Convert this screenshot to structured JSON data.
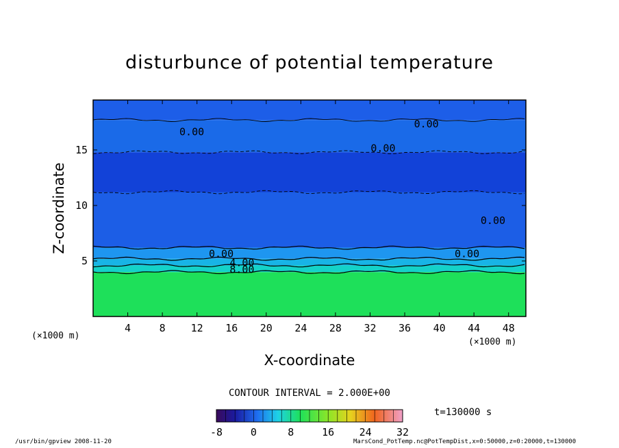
{
  "chart_data": {
    "type": "heatmap",
    "title": "disturbunce of potential temperature",
    "xlabel": "X-coordinate",
    "ylabel": "Z-coordinate",
    "x_unit_label": "(×1000 m)",
    "xlim": [
      0,
      50
    ],
    "ylim": [
      0,
      19.5
    ],
    "x_ticks": [
      4,
      8,
      12,
      16,
      20,
      24,
      28,
      32,
      36,
      40,
      44,
      48
    ],
    "y_ticks": [
      5,
      10,
      15
    ],
    "contour_interval_text": "CONTOUR INTERVAL = 2.000E+00",
    "time_text": "t=130000 s",
    "colorbar": {
      "min": -8,
      "max": 32,
      "ticks": [
        "-8",
        "0",
        "8",
        "16",
        "24",
        "32"
      ]
    },
    "layers": [
      {
        "z_from": 0,
        "z_to": 4,
        "value": 14,
        "color": "#1ee05a"
      },
      {
        "z_from": 4,
        "z_to": 4.6,
        "value": 10,
        "color": "#14d2c8"
      },
      {
        "z_from": 4.6,
        "z_to": 5.2,
        "value": 6,
        "color": "#18b4e6"
      },
      {
        "z_from": 5.2,
        "z_to": 6.2,
        "value": 2,
        "color": "#1e96f0"
      },
      {
        "z_from": 6.2,
        "z_to": 11.2,
        "value": -1.5,
        "color": "#1c5ee6"
      },
      {
        "z_from": 11.2,
        "z_to": 14.8,
        "value": -2.5,
        "color": "#1242d8"
      },
      {
        "z_from": 14.8,
        "z_to": 17.7,
        "value": -1,
        "color": "#1a6ae8"
      },
      {
        "z_from": 17.7,
        "z_to": 19.5,
        "value": -1.5,
        "color": "#1d5ee8"
      }
    ],
    "contour_labels": [
      {
        "text": "0.00",
        "x": 11.4,
        "z": 16.7
      },
      {
        "text": "0.00",
        "x": 38.5,
        "z": 17.4
      },
      {
        "text": "0.00",
        "x": 33.5,
        "z": 15.2
      },
      {
        "text": "0.00",
        "x": 46.2,
        "z": 8.7
      },
      {
        "text": "0.00",
        "x": 14.8,
        "z": 5.7
      },
      {
        "text": "0.00",
        "x": 43.2,
        "z": 5.7
      },
      {
        "text": "4.00",
        "x": 17.2,
        "z": 4.9
      },
      {
        "text": "8.00",
        "x": 17.2,
        "z": 4.3
      }
    ]
  },
  "footer": {
    "left": "/usr/bin/gpview   2008-11-20",
    "right": "MarsCond_PotTemp.nc@PotTempDist,x=0:50000,z=0:20000,t=130000"
  }
}
